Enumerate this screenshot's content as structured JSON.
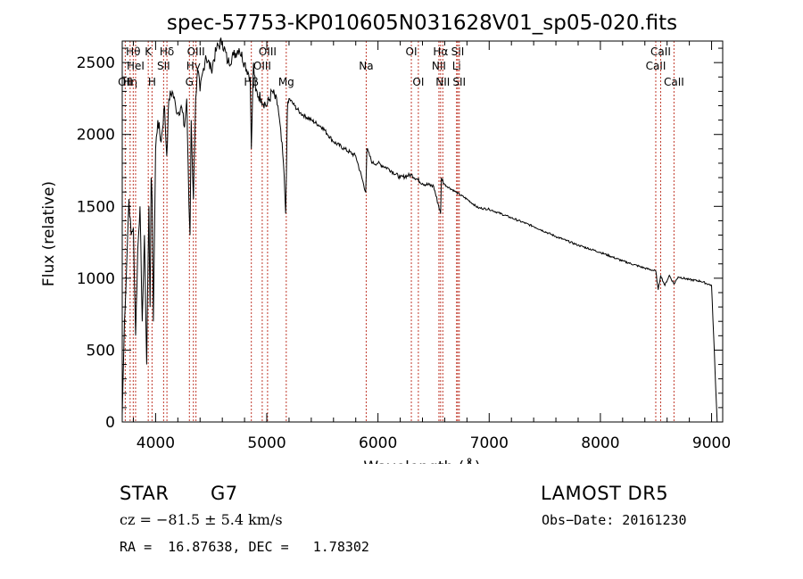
{
  "chart_data": {
    "type": "line",
    "title": "spec-57753-KP010605N031628V01_sp05-020.fits",
    "xlabel": "Wavelength (Å)",
    "ylabel": "Flux (relative)",
    "xlim": [
      3700,
      9100
    ],
    "ylim": [
      0,
      2650
    ],
    "xticks": [
      4000,
      5000,
      6000,
      7000,
      8000,
      9000
    ],
    "yticks": [
      0,
      500,
      1000,
      1500,
      2000,
      2500
    ],
    "grid": false,
    "series": [
      {
        "x": [
          3700,
          3720,
          3740,
          3760,
          3780,
          3800,
          3820,
          3840,
          3860,
          3880,
          3900,
          3920,
          3940,
          3950,
          3960,
          3970,
          3980,
          4000,
          4020,
          4050,
          4080,
          4100,
          4120,
          4150,
          4180,
          4200,
          4230,
          4260,
          4280,
          4300,
          4310,
          4320,
          4340,
          4360,
          4380,
          4400,
          4450,
          4500,
          4550,
          4600,
          4650,
          4700,
          4750,
          4800,
          4850,
          4861,
          4880,
          4900,
          4950,
          5000,
          5050,
          5100,
          5150,
          5170,
          5184,
          5200,
          5250,
          5300,
          5400,
          5500,
          5600,
          5700,
          5800,
          5890,
          5900,
          5950,
          6000,
          6100,
          6200,
          6300,
          6400,
          6500,
          6563,
          6570,
          6600,
          6700,
          6800,
          6900,
          7000,
          7200,
          7400,
          7600,
          7800,
          8000,
          8200,
          8400,
          8498,
          8520,
          8542,
          8580,
          8620,
          8662,
          8700,
          8800,
          8900,
          9000,
          9050
        ],
        "y": [
          50,
          700,
          1100,
          1550,
          1300,
          1350,
          600,
          1200,
          1500,
          700,
          1300,
          400,
          1500,
          800,
          1700,
          1500,
          700,
          1900,
          2100,
          1950,
          2200,
          1850,
          2250,
          2300,
          2200,
          2150,
          2200,
          2050,
          2250,
          1500,
          1300,
          2100,
          1550,
          2250,
          2450,
          2300,
          2550,
          2450,
          2600,
          2650,
          2500,
          2550,
          2600,
          2500,
          2400,
          1900,
          2500,
          2300,
          2250,
          2200,
          2300,
          2200,
          1800,
          1450,
          2150,
          2250,
          2200,
          2150,
          2100,
          2050,
          1950,
          1900,
          1850,
          1600,
          1900,
          1800,
          1800,
          1760,
          1700,
          1720,
          1660,
          1640,
          1450,
          1700,
          1650,
          1600,
          1550,
          1490,
          1480,
          1420,
          1360,
          1290,
          1230,
          1180,
          1120,
          1070,
          1050,
          920,
          1020,
          950,
          1020,
          960,
          1010,
          990,
          980,
          950,
          0
        ]
      }
    ],
    "lines": [
      {
        "wl": 3727,
        "label": "OII",
        "row": 3
      },
      {
        "wl": 3771,
        "label": "Hη",
        "row": 3
      },
      {
        "wl": 3799,
        "label": "Hθ",
        "row": 1
      },
      {
        "wl": 3820,
        "label": "HeI",
        "row": 2
      },
      {
        "wl": 3934,
        "label": "K",
        "row": 1
      },
      {
        "wl": 3968,
        "label": "H",
        "row": 3
      },
      {
        "wl": 4072,
        "label": "SII",
        "row": 2
      },
      {
        "wl": 4102,
        "label": "Hδ",
        "row": 1
      },
      {
        "wl": 4304,
        "label": "G",
        "row": 3
      },
      {
        "wl": 4340,
        "label": "Hγ",
        "row": 2
      },
      {
        "wl": 4363,
        "label": "OIII",
        "row": 1
      },
      {
        "wl": 4861,
        "label": "Hβ",
        "row": 3
      },
      {
        "wl": 4959,
        "label": "OIII",
        "row": 2
      },
      {
        "wl": 5007,
        "label": "OIII",
        "row": 1
      },
      {
        "wl": 5175,
        "label": "Mg",
        "row": 3
      },
      {
        "wl": 5894,
        "label": "Na",
        "row": 2
      },
      {
        "wl": 6300,
        "label": "OI",
        "row": 1
      },
      {
        "wl": 6363,
        "label": "OI",
        "row": 3
      },
      {
        "wl": 6548,
        "label": "NII",
        "row": 2
      },
      {
        "wl": 6563,
        "label": "Hα",
        "row": 1
      },
      {
        "wl": 6583,
        "label": "NII",
        "row": 3
      },
      {
        "wl": 6707,
        "label": "Li",
        "row": 2
      },
      {
        "wl": 6717,
        "label": "SII",
        "row": 1
      },
      {
        "wl": 6731,
        "label": "SII",
        "row": 3
      },
      {
        "wl": 8498,
        "label": "CaII",
        "row": 2
      },
      {
        "wl": 8542,
        "label": "CaII",
        "row": 1
      },
      {
        "wl": 8662,
        "label": "CaII",
        "row": 3
      }
    ]
  },
  "info": {
    "class_label": "STAR",
    "subclass": "G7",
    "survey": "LAMOST DR5",
    "cz_text": "cz = −81.5 ± 5.4 km/s",
    "obs_date": "Obs−Date: 20161230",
    "radec_text": "RA =  16.87638, DEC =   1.78302"
  },
  "colors": {
    "line_marker": "#c0392b",
    "spectrum": "#000000"
  }
}
